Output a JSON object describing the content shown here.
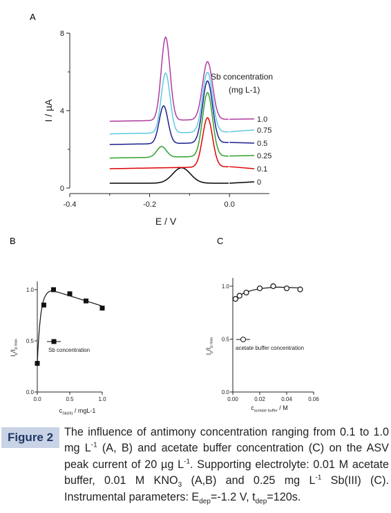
{
  "figure": {
    "panels": {
      "A": "A",
      "B": "B",
      "C": "C"
    }
  },
  "caption": {
    "label": "Figure 2",
    "segments": [
      {
        "t": "The influence of antimony concentration ranging from 0.1 to 1.0 mg L"
      },
      {
        "t": "-1",
        "sup": true
      },
      {
        "t": " (A, B) and acetate buffer concentration (C) on the ASV peak current of 20 µg L"
      },
      {
        "t": "-1",
        "sup": true
      },
      {
        "t": ". Supporting electrolyte: 0.01 M acetate buffer, 0.01 M KNO"
      },
      {
        "t": "3",
        "sub": true
      },
      {
        "t": " (A,B) and 0.25 mg L"
      },
      {
        "t": "-1",
        "sup": true
      },
      {
        "t": " Sb(III) (C). Instrumental parameters: E"
      },
      {
        "t": "dep",
        "sub": true
      },
      {
        "t": "=-1.2 V, t"
      },
      {
        "t": "dep",
        "sub": true
      },
      {
        "t": "=120s."
      }
    ]
  },
  "chart_data": [
    {
      "id": "A",
      "type": "line",
      "xlabel": "E / V",
      "ylabel": "I / µA",
      "xlim": [
        -0.4,
        0.1
      ],
      "ylim": [
        0,
        8
      ],
      "xticks": [
        -0.4,
        -0.2,
        0.0
      ],
      "xtick_labels": [
        "-0.4",
        "-0.2",
        "0.0"
      ],
      "yticks": [
        0,
        4,
        8
      ],
      "ytick_labels": [
        "0",
        "4",
        "8"
      ],
      "legend_title_line1": "Sb concentration",
      "legend_title_line2": "(mg L-1)",
      "series": [
        {
          "name": "0",
          "color": "#000000",
          "baseline": 0.25,
          "peaks": [
            {
              "x": -0.12,
              "h": 0.8,
              "w": 0.022
            },
            {
              "x": -0.06,
              "h": 0.0,
              "w": 0.012
            }
          ]
        },
        {
          "name": "0.1",
          "color": "#e00000",
          "baseline": 1.0,
          "peaks": [
            {
              "x": -0.16,
              "h": 0.0,
              "w": 0.012
            },
            {
              "x": -0.055,
              "h": 2.55,
              "w": 0.0125
            }
          ]
        },
        {
          "name": "0.25",
          "color": "#2ea02e",
          "baseline": 1.55,
          "peaks": [
            {
              "x": -0.17,
              "h": 0.55,
              "w": 0.012
            },
            {
              "x": -0.055,
              "h": 3.3,
              "w": 0.0125
            }
          ]
        },
        {
          "name": "0.5",
          "color": "#1a1f8c",
          "baseline": 2.25,
          "peaks": [
            {
              "x": -0.165,
              "h": 1.95,
              "w": 0.011
            },
            {
              "x": -0.055,
              "h": 3.2,
              "w": 0.0125
            }
          ]
        },
        {
          "name": "0.75",
          "color": "#5ec8e0",
          "baseline": 2.8,
          "peaks": [
            {
              "x": -0.16,
              "h": 3.1,
              "w": 0.011
            },
            {
              "x": -0.055,
              "h": 3.1,
              "w": 0.0125
            }
          ]
        },
        {
          "name": "1.0",
          "color": "#b03aa0",
          "baseline": 3.45,
          "peaks": [
            {
              "x": -0.16,
              "h": 4.3,
              "w": 0.011
            },
            {
              "x": -0.055,
              "h": 3.0,
              "w": 0.0125
            }
          ]
        }
      ]
    },
    {
      "id": "B",
      "type": "scatter",
      "xlabel": "c",
      "xlabel_sub": "Sb(III)",
      "xlabel_rest": " / mgL-1",
      "ylabel": "I",
      "ylabel_sub1": "p",
      "ylabel_mid": "/I",
      "ylabel_sub2": "p max",
      "xlim": [
        0,
        1.0
      ],
      "ylim": [
        0,
        1.0
      ],
      "xticks": [
        0,
        0.5,
        1.0
      ],
      "xtick_labels": [
        "0.0",
        "0.5",
        "1.0"
      ],
      "yticks": [
        0,
        0.5,
        1.0
      ],
      "ytick_labels": [
        "0.0",
        "0.5",
        "1.0"
      ],
      "marker": "filled-square",
      "legend": "Sb concentration",
      "x": [
        0.0,
        0.1,
        0.25,
        0.5,
        0.75,
        1.0
      ],
      "y": [
        0.28,
        0.85,
        1.0,
        0.96,
        0.89,
        0.82
      ]
    },
    {
      "id": "C",
      "type": "scatter",
      "xlabel": "c",
      "xlabel_sub": "acetate buffer",
      "xlabel_rest": " / M",
      "ylabel": "I",
      "ylabel_sub1": "p",
      "ylabel_mid": "/I",
      "ylabel_sub2": "p max",
      "xlim": [
        0,
        0.06
      ],
      "ylim": [
        0,
        1.0
      ],
      "xticks": [
        0.0,
        0.02,
        0.04,
        0.06
      ],
      "xtick_labels": [
        "0.00",
        "0.02",
        "0.04",
        "0.06"
      ],
      "yticks": [
        0,
        0.5,
        1.0
      ],
      "ytick_labels": [
        "0.0",
        "0.5",
        "1.0"
      ],
      "marker": "open-circle",
      "legend": "acetate buffer concentration",
      "x": [
        0.002,
        0.005,
        0.01,
        0.02,
        0.03,
        0.04,
        0.05
      ],
      "y": [
        0.88,
        0.91,
        0.94,
        0.98,
        1.0,
        0.98,
        0.97
      ]
    }
  ]
}
